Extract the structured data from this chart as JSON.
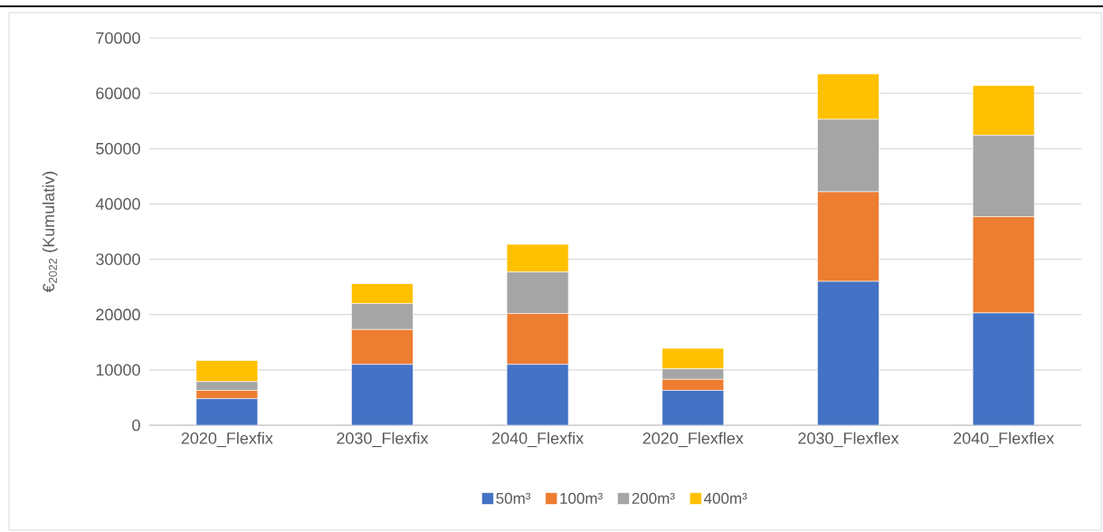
{
  "chart_data": {
    "type": "bar",
    "stacked": true,
    "ylabel": "€$_{2022}$ (Kumulativ)",
    "categories": [
      "2020_Flexfix",
      "2030_Flexfix",
      "2040_Flexfix",
      "2020_Flexflex",
      "2030_Flexflex",
      "2040_Flexflex"
    ],
    "series": [
      {
        "name": "50m³",
        "color": "#4472c4",
        "values": [
          4800,
          11000,
          11000,
          6300,
          26000,
          20300
        ]
      },
      {
        "name": "100m³",
        "color": "#ed7d31",
        "values": [
          1500,
          6300,
          9200,
          2000,
          16200,
          17400
        ]
      },
      {
        "name": "200m³",
        "color": "#a5a5a5",
        "values": [
          1600,
          4700,
          7500,
          1900,
          13100,
          14700
        ]
      },
      {
        "name": "400m³",
        "color": "#ffc000",
        "values": [
          3800,
          3600,
          5000,
          3700,
          8200,
          9000
        ]
      }
    ],
    "ylim": [
      0,
      70000
    ],
    "yticks": [
      0,
      10000,
      20000,
      30000,
      40000,
      50000,
      60000,
      70000
    ],
    "grid": "y",
    "legend": "bottom"
  }
}
